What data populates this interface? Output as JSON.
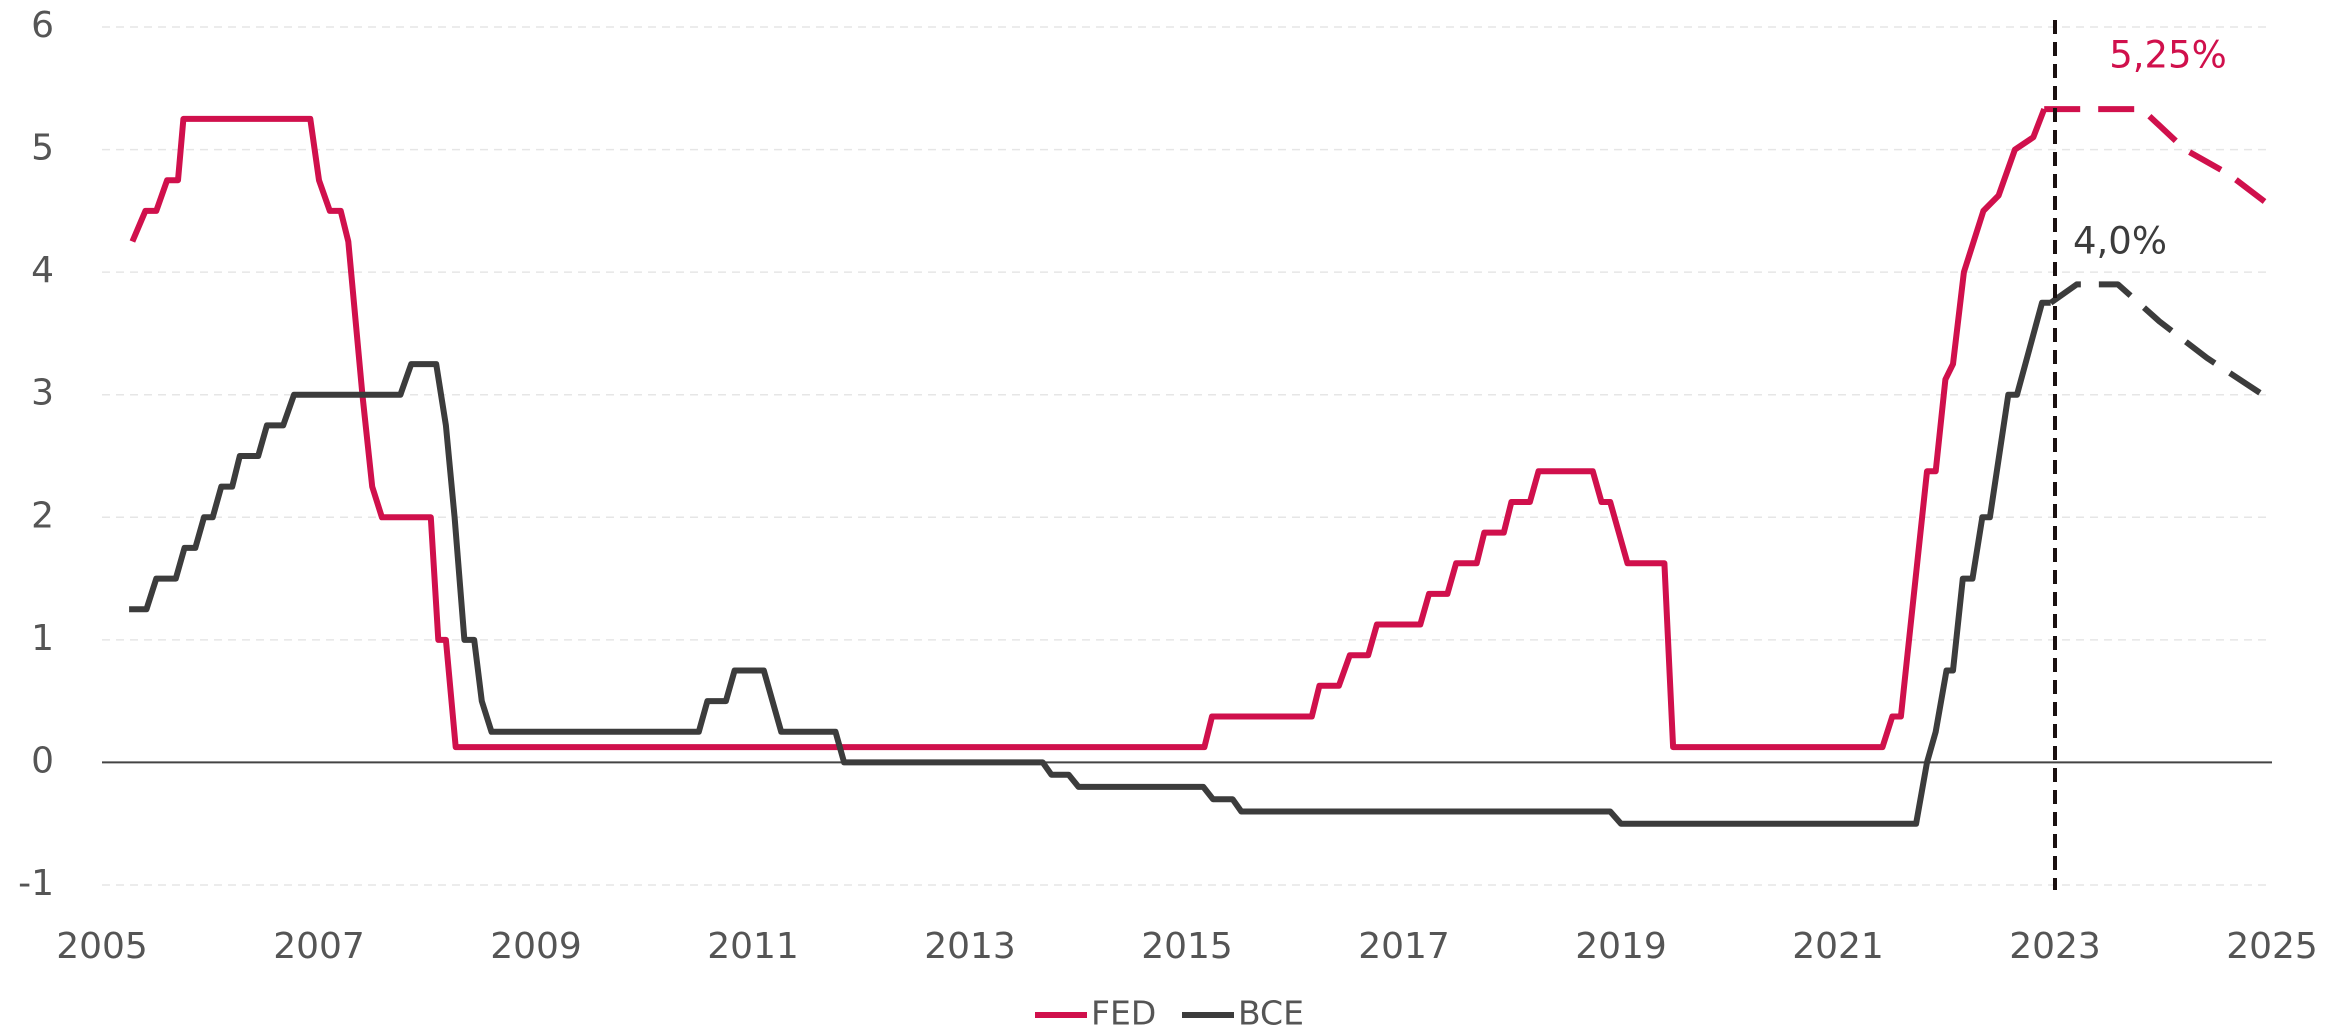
{
  "chart_data": {
    "type": "line",
    "xlim": [
      2005,
      2025
    ],
    "xticks": [
      2005,
      2007,
      2009,
      2011,
      2013,
      2015,
      2017,
      2019,
      2021,
      2023,
      2025
    ],
    "ylim": [
      -1,
      6
    ],
    "yticks": [
      -1,
      0,
      1,
      2,
      3,
      4,
      5,
      6
    ],
    "grid": true,
    "legend": "bottom",
    "forecast_line": 2023,
    "annotations": [
      "5,25%",
      "4,0%"
    ],
    "series": [
      {
        "name": "FED",
        "color": "#d0104c",
        "x": [
          2005.28,
          2005.4,
          2005.5,
          2005.6,
          2005.7,
          2005.75,
          2006.92,
          2007.0,
          2007.1,
          2007.2,
          2007.27,
          2007.4,
          2007.49,
          2007.58,
          2008.03,
          2008.1,
          2008.17,
          2008.26,
          2015.16,
          2015.23,
          2016.15,
          2016.22,
          2016.4,
          2016.5,
          2016.67,
          2016.75,
          2017.15,
          2017.23,
          2017.4,
          2017.48,
          2017.67,
          2017.74,
          2017.92,
          2017.99,
          2018.16,
          2018.24,
          2018.74,
          2018.82,
          2018.9,
          2019.06,
          2019.4,
          2019.48,
          2021.41,
          2021.5,
          2021.58,
          2021.64,
          2021.82,
          2021.9,
          2021.99,
          2022.06,
          2022.16,
          2022.34,
          2022.48,
          2022.63,
          2022.8,
          2022.9,
          2023.3,
          2023.8,
          2024.2,
          2024.6,
          2025.0
        ],
        "values": [
          4.25,
          4.5,
          4.5,
          4.75,
          4.75,
          5.25,
          5.25,
          4.75,
          4.5,
          4.5,
          4.25,
          3.0,
          2.25,
          2.0,
          2.0,
          1.0,
          1.0,
          0.125,
          0.125,
          0.375,
          0.375,
          0.625,
          0.625,
          0.875,
          0.875,
          1.125,
          1.125,
          1.375,
          1.375,
          1.625,
          1.625,
          1.875,
          1.875,
          2.125,
          2.125,
          2.375,
          2.375,
          2.125,
          2.125,
          1.625,
          1.625,
          0.125,
          0.125,
          0.375,
          0.375,
          0.875,
          2.375,
          2.375,
          3.125,
          3.25,
          4.0,
          4.5,
          4.625,
          5.0,
          5.1,
          5.33,
          5.33,
          5.33,
          5.0,
          4.8,
          4.53
        ]
      },
      {
        "name": "BCE",
        "color": "#3c3c3c",
        "x": [
          2005.25,
          2005.41,
          2005.5,
          2005.68,
          2005.76,
          2005.86,
          2005.94,
          2006.02,
          2006.1,
          2006.2,
          2006.27,
          2006.44,
          2006.52,
          2006.67,
          2006.77,
          2007.75,
          2007.85,
          2008.08,
          2008.17,
          2008.25,
          2008.34,
          2008.43,
          2008.5,
          2008.59,
          2010.5,
          2010.58,
          2010.75,
          2010.83,
          2011.1,
          2011.26,
          2011.76,
          2011.84,
          2013.67,
          2013.75,
          2013.91,
          2014.0,
          2015.15,
          2015.24,
          2015.42,
          2015.5,
          2018.9,
          2019.0,
          2021.72,
          2021.82,
          2021.9,
          2022.0,
          2022.06,
          2022.15,
          2022.24,
          2022.33,
          2022.4,
          2022.57,
          2022.65,
          2022.88,
          2022.96,
          2023.2,
          2023.58,
          2023.96,
          2024.4,
          2025.0
        ],
        "values": [
          1.25,
          1.25,
          1.5,
          1.5,
          1.75,
          1.75,
          2.0,
          2.0,
          2.25,
          2.25,
          2.5,
          2.5,
          2.75,
          2.75,
          3.0,
          3.0,
          3.25,
          3.25,
          2.75,
          2.0,
          1.0,
          1.0,
          0.5,
          0.25,
          0.25,
          0.5,
          0.5,
          0.75,
          0.75,
          0.25,
          0.25,
          0.0,
          0.0,
          -0.1,
          -0.1,
          -0.2,
          -0.2,
          -0.3,
          -0.3,
          -0.4,
          -0.4,
          -0.5,
          -0.5,
          0.0,
          0.25,
          0.75,
          0.75,
          1.5,
          1.5,
          2.0,
          2.0,
          3.0,
          3.0,
          3.75,
          3.75,
          3.9,
          3.9,
          3.6,
          3.3,
          2.95
        ]
      }
    ]
  }
}
